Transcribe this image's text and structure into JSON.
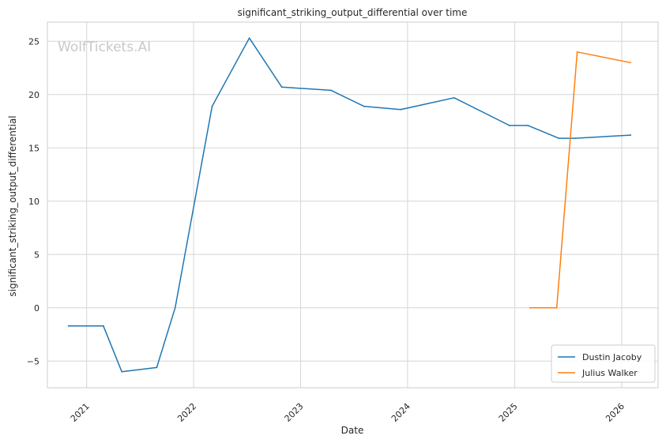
{
  "chart_data": {
    "type": "line",
    "title": "significant_striking_output_differential over time",
    "xlabel": "Date",
    "ylabel": "significant_striking_output_differential",
    "watermark": "WolfTickets.AI",
    "x_ticks": [
      "2021",
      "2022",
      "2023",
      "2024",
      "2025",
      "2026"
    ],
    "y_ticks": [
      -5,
      0,
      5,
      10,
      15,
      20,
      25
    ],
    "ylim": [
      -7.5,
      26.8
    ],
    "xlim": [
      "2020-08-20",
      "2026-05-05"
    ],
    "grid": true,
    "legend_position": "lower right",
    "series": [
      {
        "name": "Dustin Jacoby",
        "color": "#1f77b4",
        "points": [
          {
            "x": "2020-10-31",
            "y": -1.7
          },
          {
            "x": "2021-02-27",
            "y": -1.7
          },
          {
            "x": "2021-05-01",
            "y": -6.0
          },
          {
            "x": "2021-08-28",
            "y": -5.6
          },
          {
            "x": "2021-10-30",
            "y": 0.0
          },
          {
            "x": "2022-03-05",
            "y": 18.9
          },
          {
            "x": "2022-07-10",
            "y": 25.3
          },
          {
            "x": "2022-10-29",
            "y": 20.7
          },
          {
            "x": "2023-04-15",
            "y": 20.4
          },
          {
            "x": "2023-08-05",
            "y": 18.9
          },
          {
            "x": "2023-12-09",
            "y": 18.6
          },
          {
            "x": "2024-06-08",
            "y": 19.7
          },
          {
            "x": "2024-12-14",
            "y": 17.1
          },
          {
            "x": "2025-02-15",
            "y": 17.1
          },
          {
            "x": "2025-05-31",
            "y": 15.9
          },
          {
            "x": "2025-07-26",
            "y": 15.9
          },
          {
            "x": "2026-01-31",
            "y": 16.2
          }
        ]
      },
      {
        "name": "Julius Walker",
        "color": "#ff7f0e",
        "points": [
          {
            "x": "2025-02-22",
            "y": 0.0
          },
          {
            "x": "2025-05-24",
            "y": 0.0
          },
          {
            "x": "2025-08-02",
            "y": 24.0
          },
          {
            "x": "2026-01-31",
            "y": 23.0
          }
        ]
      }
    ]
  }
}
